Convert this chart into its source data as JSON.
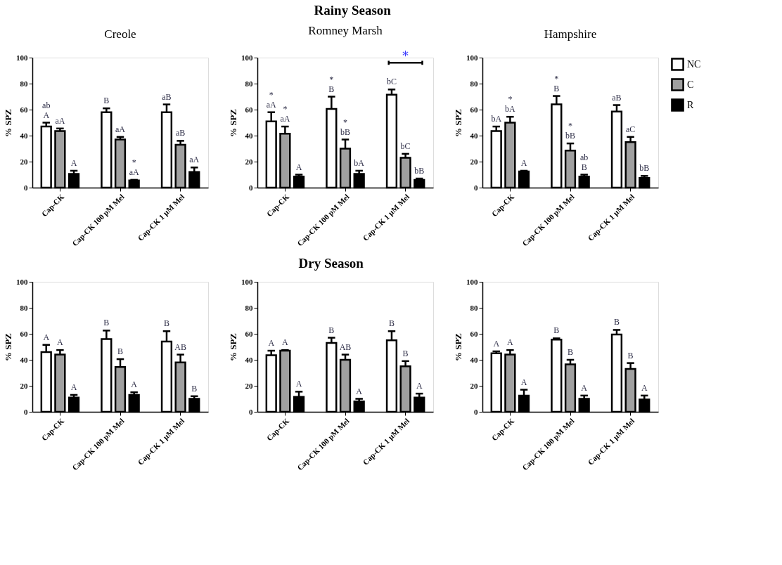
{
  "chart_data": [
    {
      "type": "bar",
      "title": "Creole",
      "ylabel": "% SPZ",
      "categories": [
        "Cap-CK",
        "Cap-CK 100 pM Mel",
        "Cap-CK 1 µM Mel"
      ],
      "ylim": [
        0,
        100
      ],
      "yticks": [
        0,
        20,
        40,
        60,
        80,
        100
      ],
      "grid": false,
      "legend": false,
      "series": [
        {
          "color": "#ffffff",
          "values": [
            47,
            58,
            58
          ],
          "errors": [
            [
              47,
              50
            ],
            [
              58,
              61
            ],
            [
              58,
              64
            ]
          ],
          "value_labels": [
            "ab\nA",
            "B",
            "aB"
          ]
        },
        {
          "color": "#a0a0a0",
          "values": [
            43.5,
            37,
            33
          ],
          "errors": [
            [
              43.5,
              45.5
            ],
            [
              37,
              39
            ],
            [
              33,
              36
            ]
          ],
          "value_labels": [
            "aA",
            "aA",
            "aB"
          ]
        },
        {
          "color": "#000000",
          "values": [
            10.5,
            5.5,
            12
          ],
          "errors": [
            [
              10.5,
              13
            ],
            [
              5.5,
              6
            ],
            [
              12,
              15.5
            ]
          ],
          "value_labels": [
            "A",
            "*\naA",
            "aA"
          ]
        }
      ],
      "annotations": [
        "Rainy Season"
      ]
    },
    {
      "type": "bar",
      "title": "Romney Marsh",
      "ylabel": "% SPZ",
      "categories": [
        "Cap-CK",
        "Cap-CK 100 pM Mel",
        "Cap-CK 1 µM Mel"
      ],
      "ylim": [
        0,
        100
      ],
      "yticks": [
        0,
        20,
        40,
        60,
        80,
        100
      ],
      "grid": false,
      "legend": false,
      "series": [
        {
          "color": "#ffffff",
          "values": [
            51,
            60.5,
            71.5
          ],
          "errors": [
            [
              51,
              58
            ],
            [
              60.5,
              70
            ],
            [
              71.5,
              75.5
            ]
          ],
          "value_labels": [
            "*\naA",
            "*\nB",
            "bC"
          ]
        },
        {
          "color": "#a0a0a0",
          "values": [
            41.5,
            30,
            23
          ],
          "errors": [
            [
              41.5,
              47
            ],
            [
              30,
              37
            ],
            [
              23,
              26
            ]
          ],
          "value_labels": [
            "*\naA",
            "*\nbB",
            "bC"
          ]
        },
        {
          "color": "#000000",
          "values": [
            8.5,
            10.5,
            6
          ],
          "errors": [
            [
              8.5,
              10
            ],
            [
              10.5,
              13
            ],
            [
              6,
              7
            ]
          ],
          "value_labels": [
            "A",
            "bA",
            "bB"
          ]
        }
      ],
      "annotations": [
        "*"
      ]
    },
    {
      "type": "bar",
      "title": "Hampshire",
      "ylabel": "% SPZ",
      "categories": [
        "Cap-CK",
        "Cap-CK 100 pM Mel",
        "Cap-CK 1 µM Mel"
      ],
      "ylim": [
        0,
        100
      ],
      "yticks": [
        0,
        20,
        40,
        60,
        80,
        100
      ],
      "grid": false,
      "legend": "top right",
      "series": [
        {
          "name": "NC",
          "color": "#ffffff",
          "values": [
            43.5,
            64,
            58.5
          ],
          "errors": [
            [
              43.5,
              47
            ],
            [
              64,
              70.5
            ],
            [
              58.5,
              63.5
            ]
          ],
          "value_labels": [
            "bA",
            "*\nB",
            "aB"
          ]
        },
        {
          "name": "C",
          "color": "#a0a0a0",
          "values": [
            50,
            28.5,
            35
          ],
          "errors": [
            [
              50,
              54.5
            ],
            [
              28.5,
              34
            ],
            [
              35,
              39
            ]
          ],
          "value_labels": [
            "*\nbA",
            "*\nbB",
            "aC"
          ]
        },
        {
          "name": "R",
          "color": "#000000",
          "values": [
            12.5,
            8.5,
            7.5
          ],
          "errors": [
            [
              12.5,
              13
            ],
            [
              8.5,
              10
            ],
            [
              7.5,
              9
            ]
          ],
          "value_labels": [
            "A",
            "ab\nB",
            "bB"
          ]
        }
      ]
    },
    {
      "type": "bar",
      "ylabel": "% SPZ",
      "categories": [
        "Cap-CK",
        "Cap-CK 100 pM Mel",
        "Cap-CK 1 µM Mel"
      ],
      "ylim": [
        0,
        100
      ],
      "yticks": [
        0,
        20,
        40,
        60,
        80,
        100
      ],
      "grid": false,
      "legend": false,
      "series": [
        {
          "color": "#ffffff",
          "values": [
            46,
            56,
            54
          ],
          "errors": [
            [
              46,
              51.5
            ],
            [
              56,
              62.5
            ],
            [
              54,
              62
            ]
          ],
          "value_labels": [
            "A",
            "B",
            "B"
          ]
        },
        {
          "color": "#a0a0a0",
          "values": [
            44,
            34.5,
            38
          ],
          "errors": [
            [
              44,
              47.5
            ],
            [
              34.5,
              40.5
            ],
            [
              38,
              44
            ]
          ],
          "value_labels": [
            "A",
            "B",
            "AB"
          ]
        },
        {
          "color": "#000000",
          "values": [
            11,
            13,
            10
          ],
          "errors": [
            [
              11,
              13
            ],
            [
              13,
              15
            ],
            [
              10,
              12
            ]
          ],
          "value_labels": [
            "A",
            "A",
            "B"
          ]
        }
      ],
      "annotations": [
        "Dry Season"
      ]
    },
    {
      "type": "bar",
      "ylabel": "% SPZ",
      "categories": [
        "Cap-CK",
        "Cap-CK 100 pM Mel",
        "Cap-CK 1 µM Mel"
      ],
      "ylim": [
        0,
        100
      ],
      "yticks": [
        0,
        20,
        40,
        60,
        80,
        100
      ],
      "grid": false,
      "legend": false,
      "series": [
        {
          "color": "#ffffff",
          "values": [
            43.5,
            53,
            55
          ],
          "errors": [
            [
              43.5,
              47
            ],
            [
              53,
              57
            ],
            [
              55,
              62
            ]
          ],
          "value_labels": [
            "A",
            "B",
            "B"
          ]
        },
        {
          "color": "#a0a0a0",
          "values": [
            47,
            40,
            35
          ],
          "errors": [
            [
              47,
              47.5
            ],
            [
              40,
              44
            ],
            [
              35,
              39
            ]
          ],
          "value_labels": [
            "A",
            "AB",
            "B"
          ]
        },
        {
          "color": "#000000",
          "values": [
            11.5,
            8,
            11
          ],
          "errors": [
            [
              11.5,
              15.5
            ],
            [
              8,
              10
            ],
            [
              11,
              14
            ]
          ],
          "value_labels": [
            "A",
            "A",
            "A"
          ]
        }
      ]
    },
    {
      "type": "bar",
      "ylabel": "% SPZ",
      "categories": [
        "Cap-CK",
        "Cap-CK 100 pM Mel",
        "Cap-CK 1 µM Mel"
      ],
      "ylim": [
        0,
        100
      ],
      "yticks": [
        0,
        20,
        40,
        60,
        80,
        100
      ],
      "grid": false,
      "legend": false,
      "series": [
        {
          "color": "#ffffff",
          "values": [
            45,
            55.5,
            59.5
          ],
          "errors": [
            [
              45,
              46.5
            ],
            [
              55.5,
              56.5
            ],
            [
              59.5,
              63
            ]
          ],
          "value_labels": [
            "A",
            "B",
            "B"
          ]
        },
        {
          "color": "#a0a0a0",
          "values": [
            44,
            36.5,
            33
          ],
          "errors": [
            [
              44,
              47.5
            ],
            [
              36.5,
              40
            ],
            [
              33,
              37.5
            ]
          ],
          "value_labels": [
            "A",
            "B",
            "B"
          ]
        },
        {
          "color": "#000000",
          "values": [
            12.5,
            10,
            9.5
          ],
          "errors": [
            [
              12.5,
              17
            ],
            [
              10,
              12.5
            ],
            [
              9.5,
              12.5
            ]
          ],
          "value_labels": [
            "A",
            "A",
            "A"
          ]
        }
      ]
    }
  ]
}
